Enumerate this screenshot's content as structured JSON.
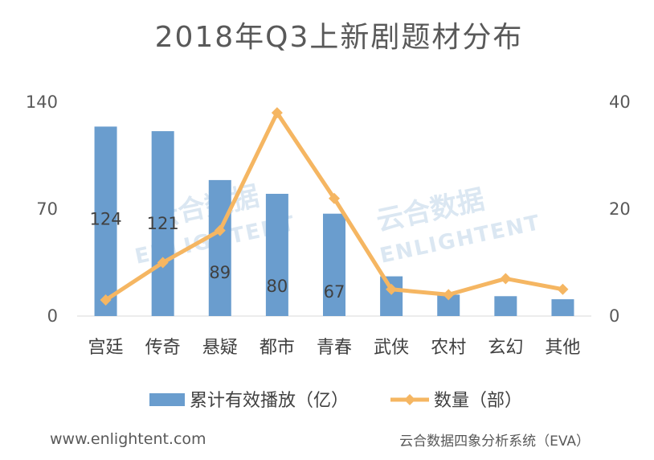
{
  "chart_data": {
    "type": "bar",
    "title": "2018年Q3上新剧题材分布",
    "categories": [
      "宫廷",
      "传奇",
      "悬疑",
      "都市",
      "青春",
      "武侠",
      "农村",
      "玄幻",
      "其他"
    ],
    "series": [
      {
        "name": "累计有效播放（亿）",
        "type": "bar",
        "axis": "left",
        "color": "#6a9dce",
        "values": [
          124,
          121,
          89,
          80,
          67,
          26,
          14,
          13,
          11
        ],
        "data_labels": [
          "124",
          "121",
          "89",
          "80",
          "67",
          null,
          null,
          null,
          null
        ]
      },
      {
        "name": "数量（部）",
        "type": "line",
        "axis": "right",
        "color": "#f5b662",
        "values": [
          3,
          10,
          16,
          38,
          22,
          5,
          4,
          7,
          5
        ]
      }
    ],
    "y_left": {
      "ylim": [
        0,
        140
      ],
      "ticks": [
        "0",
        "70",
        "140"
      ]
    },
    "y_right": {
      "ylim": [
        0,
        40
      ],
      "ticks": [
        "0",
        "20",
        "40"
      ]
    },
    "grid": false,
    "legend": "bottom"
  },
  "watermark": {
    "brand": "云合数据",
    "sub": "ENLIGHTENT"
  },
  "footer": {
    "left": "www.enlightent.com",
    "right": "云合数据四象分析系统（EVA）"
  }
}
